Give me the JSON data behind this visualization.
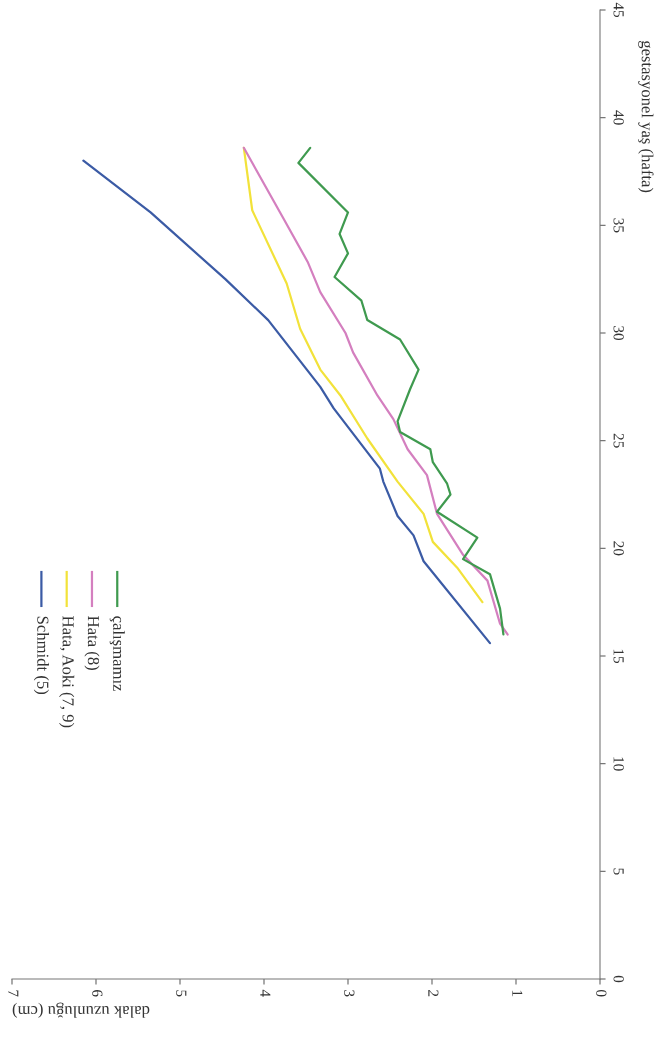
{
  "chart_data": {
    "type": "line",
    "xlabel": "dalak uzunluğu (cm)",
    "ylabel": "gestasyonel yaş (hafta)",
    "xlim": [
      7,
      0
    ],
    "xticks": [
      7,
      6,
      5,
      4,
      3,
      2,
      1,
      0
    ],
    "ylim": [
      0,
      45
    ],
    "yticks": [
      0,
      5,
      10,
      15,
      20,
      25,
      30,
      35,
      40,
      45
    ],
    "grid": false,
    "legend": "bottom left",
    "marker": "none",
    "line_style": "solid",
    "series": [
      {
        "name": "Schmidt (5)",
        "color": "#3b5ba5",
        "values": [
          15.6,
          19.4,
          20.6,
          21.5,
          23.1,
          23.7,
          26.5,
          27.5,
          30.6,
          32.5,
          35.6,
          38
        ],
        "x": [
          1.31,
          2.1,
          2.22,
          2.41,
          2.58,
          2.62,
          3.17,
          3.33,
          3.95,
          4.46,
          5.35,
          6.15
        ]
      },
      {
        "name": "Hata, Aoki (7, 9)",
        "color": "#f2e23a",
        "values": [
          17.5,
          19.1,
          20.3,
          21.6,
          23.1,
          25.1,
          27.1,
          28.3,
          30.2,
          32.3,
          35.7,
          38.6
        ],
        "x": [
          1.4,
          1.7,
          1.99,
          2.1,
          2.41,
          2.77,
          3.09,
          3.33,
          3.57,
          3.73,
          4.14,
          4.24
        ]
      },
      {
        "name": "Hata (8)",
        "color": "#d47fbf",
        "values": [
          16,
          16.5,
          18.5,
          19.7,
          21.6,
          23.4,
          24.6,
          26,
          27.1,
          29.1,
          30,
          31.9,
          33.3,
          35.4,
          38.6
        ],
        "x": [
          1.1,
          1.19,
          1.34,
          1.63,
          1.94,
          2.06,
          2.29,
          2.46,
          2.65,
          2.94,
          3.03,
          3.33,
          3.48,
          3.78,
          4.24
        ]
      },
      {
        "name": "çalışmamız",
        "color": "#3f9a4f",
        "values": [
          16,
          17.2,
          18.8,
          19.5,
          20.5,
          21.7,
          22.5,
          23,
          24,
          24.6,
          25.4,
          25.9,
          27.4,
          28.3,
          29.7,
          30.6,
          31.5,
          32.6,
          33.7,
          34.6,
          35.6,
          37.9,
          38.6
        ],
        "x": [
          1.15,
          1.19,
          1.31,
          1.63,
          1.46,
          1.94,
          1.78,
          1.82,
          1.99,
          2.02,
          2.38,
          2.41,
          2.26,
          2.16,
          2.38,
          2.77,
          2.84,
          3.16,
          3.0,
          3.1,
          3.0,
          3.59,
          3.45
        ]
      }
    ]
  }
}
